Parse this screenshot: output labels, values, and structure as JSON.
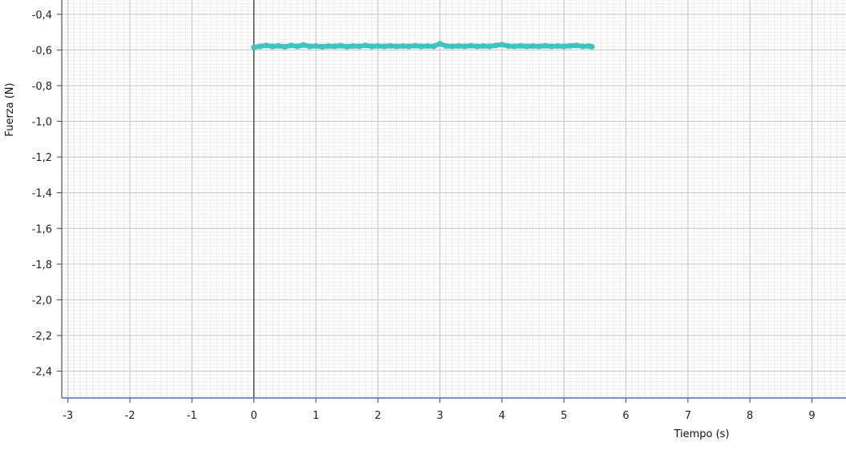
{
  "chart_data": {
    "type": "scatter",
    "title": "",
    "xlabel": "Tiempo (s)",
    "ylabel": "Fuerza (N)",
    "xlim": [
      -3.1,
      9.55
    ],
    "ylim": [
      -2.55,
      -0.32
    ],
    "x_ticks": [
      -3,
      -2,
      -1,
      0,
      1,
      2,
      3,
      4,
      5,
      6,
      7,
      8,
      9
    ],
    "y_ticks": [
      -0.4,
      -0.6,
      -0.8,
      -1.0,
      -1.2,
      -1.4,
      -1.6,
      -1.8,
      -2.0,
      -2.2,
      -2.4
    ],
    "x_tick_labels": [
      "-3",
      "-2",
      "-1",
      "0",
      "1",
      "2",
      "3",
      "4",
      "5",
      "6",
      "7",
      "8",
      "9"
    ],
    "y_tick_labels": [
      "-0,4",
      "-0,6",
      "-0,8",
      "-1,0",
      "-1,2",
      "-1,4",
      "-1,6",
      "-1,8",
      "-2,0",
      "-2,2",
      "-2,4"
    ],
    "grid": true,
    "series": [
      {
        "color": "#3fc2c2",
        "x": [
          0.0,
          0.1,
          0.2,
          0.3,
          0.4,
          0.5,
          0.6,
          0.7,
          0.8,
          0.9,
          1.0,
          1.1,
          1.2,
          1.3,
          1.4,
          1.5,
          1.6,
          1.7,
          1.8,
          1.9,
          2.0,
          2.1,
          2.2,
          2.3,
          2.4,
          2.5,
          2.6,
          2.7,
          2.8,
          2.9,
          3.0,
          3.1,
          3.2,
          3.3,
          3.4,
          3.5,
          3.6,
          3.7,
          3.8,
          3.9,
          4.0,
          4.1,
          4.2,
          4.3,
          4.4,
          4.5,
          4.6,
          4.7,
          4.8,
          4.9,
          5.0,
          5.1,
          5.2,
          5.3,
          5.4,
          5.45
        ],
        "y": [
          -0.585,
          -0.58,
          -0.575,
          -0.58,
          -0.577,
          -0.582,
          -0.575,
          -0.58,
          -0.572,
          -0.58,
          -0.578,
          -0.582,
          -0.578,
          -0.58,
          -0.576,
          -0.581,
          -0.578,
          -0.58,
          -0.575,
          -0.58,
          -0.578,
          -0.58,
          -0.577,
          -0.58,
          -0.578,
          -0.58,
          -0.576,
          -0.58,
          -0.578,
          -0.58,
          -0.565,
          -0.578,
          -0.58,
          -0.578,
          -0.58,
          -0.576,
          -0.58,
          -0.578,
          -0.58,
          -0.575,
          -0.57,
          -0.578,
          -0.58,
          -0.577,
          -0.58,
          -0.578,
          -0.58,
          -0.576,
          -0.58,
          -0.578,
          -0.58,
          -0.577,
          -0.575,
          -0.58,
          -0.578,
          -0.582
        ]
      }
    ]
  }
}
